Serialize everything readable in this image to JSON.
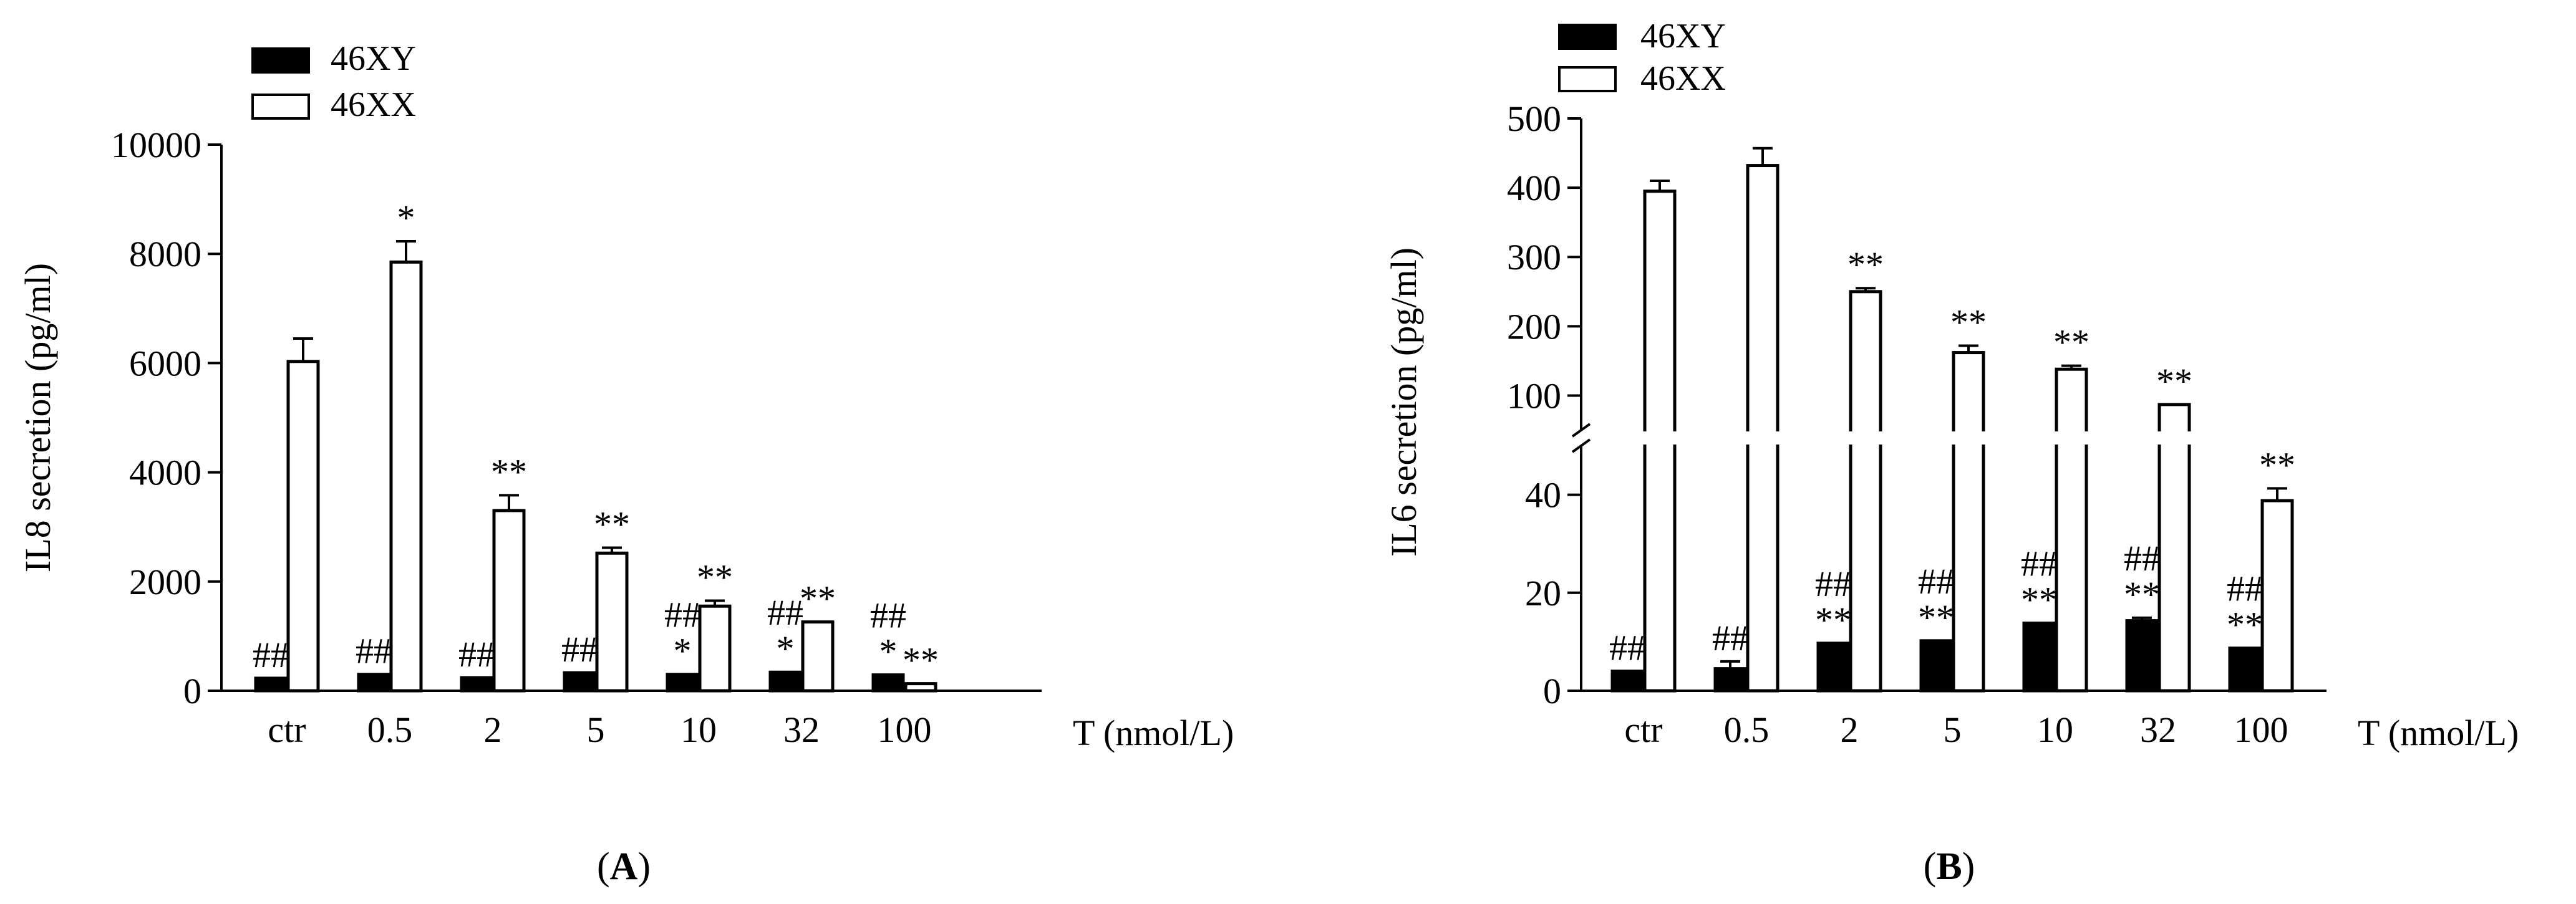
{
  "chart_data": [
    {
      "panel_label": "(A)",
      "panel_label_letter": "A",
      "type": "bar",
      "categories": [
        "ctr",
        "0.5",
        "2",
        "5",
        "10",
        "32",
        "100"
      ],
      "xlabel": "T (nmol/L)",
      "ylabel": "IL8  secretion (pg/ml)",
      "ylim": [
        0,
        10000
      ],
      "yticks": [
        0,
        2000,
        4000,
        6000,
        8000,
        10000
      ],
      "legend_position": "top-left",
      "series": [
        {
          "name": "46XY",
          "fill": "#000000",
          "values": [
            230,
            300,
            240,
            330,
            300,
            340,
            290
          ],
          "errors": [
            0,
            0,
            0,
            0,
            0,
            0,
            0
          ],
          "annotations": [
            [
              "##"
            ],
            [
              "##"
            ],
            [
              "##"
            ],
            [
              "##"
            ],
            [
              "##",
              "*"
            ],
            [
              "##",
              "*"
            ],
            [
              "##",
              "*"
            ]
          ]
        },
        {
          "name": "46XX",
          "fill": "#ffffff",
          "values": [
            6030,
            7850,
            3300,
            2520,
            1550,
            1260,
            130
          ],
          "errors": [
            420,
            380,
            280,
            100,
            100,
            0,
            0
          ],
          "annotations": [
            [],
            [
              "*"
            ],
            [
              "**"
            ],
            [
              "**"
            ],
            [
              "**"
            ],
            [
              "**"
            ],
            [
              "**"
            ]
          ]
        }
      ]
    },
    {
      "panel_label": "(B)",
      "panel_label_letter": "B",
      "type": "bar",
      "categories": [
        "ctr",
        "0.5",
        "2",
        "5",
        "10",
        "32",
        "100"
      ],
      "xlabel": "T (nmol/L)",
      "ylabel": "IL6  secretion (pg/ml)",
      "axis_break": true,
      "ylim_lower": [
        0,
        50
      ],
      "yticks_lower": [
        0,
        20,
        40
      ],
      "ylim_upper": [
        50,
        500
      ],
      "yticks_upper": [
        100,
        200,
        300,
        400,
        500
      ],
      "legend_position": "top-left",
      "series": [
        {
          "name": "46XY",
          "fill": "#000000",
          "values": [
            4,
            4.5,
            9.7,
            10.2,
            13.8,
            14.3,
            8.7
          ],
          "errors": [
            0,
            1.5,
            0,
            0,
            0,
            0.6,
            0
          ],
          "annotations": [
            [
              "##"
            ],
            [
              "##"
            ],
            [
              "##",
              "**"
            ],
            [
              "##",
              "**"
            ],
            [
              "##",
              "**"
            ],
            [
              "##",
              "**"
            ],
            [
              "##",
              "**"
            ]
          ]
        },
        {
          "name": "46XX",
          "fill": "#ffffff",
          "values": [
            395,
            432,
            250,
            162,
            138,
            87,
            38.8
          ],
          "errors": [
            15,
            25,
            5,
            10,
            5,
            0,
            2.5
          ],
          "annotations": [
            [],
            [],
            [
              "**"
            ],
            [
              "**"
            ],
            [
              "**"
            ],
            [
              "**"
            ],
            [
              "**"
            ]
          ]
        }
      ]
    }
  ]
}
